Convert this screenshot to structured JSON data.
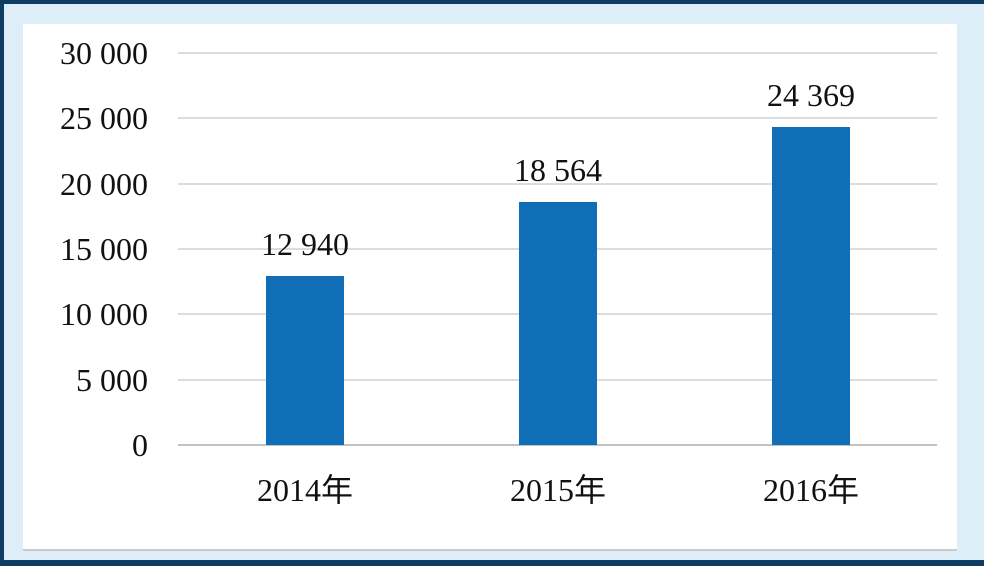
{
  "colors": {
    "bar": "#0f6eb6",
    "frame_background": "#ddeef8",
    "frame_border": "#0e3c63",
    "panel_background": "#ffffff",
    "gridline": "#dcdcdc",
    "baseline": "#c1c2c4",
    "text": "#111111"
  },
  "chart_data": {
    "type": "bar",
    "title": "",
    "xlabel": "",
    "ylabel": "",
    "legend": "none",
    "grid": "horizontal",
    "ylim": [
      0,
      30000
    ],
    "categories": [
      "2014年",
      "2015年",
      "2016年"
    ],
    "values": [
      12940,
      18564,
      24369
    ],
    "value_labels": [
      "12 940",
      "18 564",
      "24 369"
    ],
    "y_ticks": [
      {
        "value": 30000,
        "label": "30 000"
      },
      {
        "value": 25000,
        "label": "25 000"
      },
      {
        "value": 20000,
        "label": "20 000"
      },
      {
        "value": 15000,
        "label": "15 000"
      },
      {
        "value": 10000,
        "label": "10 000"
      },
      {
        "value": 5000,
        "label": "5 000"
      },
      {
        "value": 0,
        "label": "0"
      }
    ]
  }
}
